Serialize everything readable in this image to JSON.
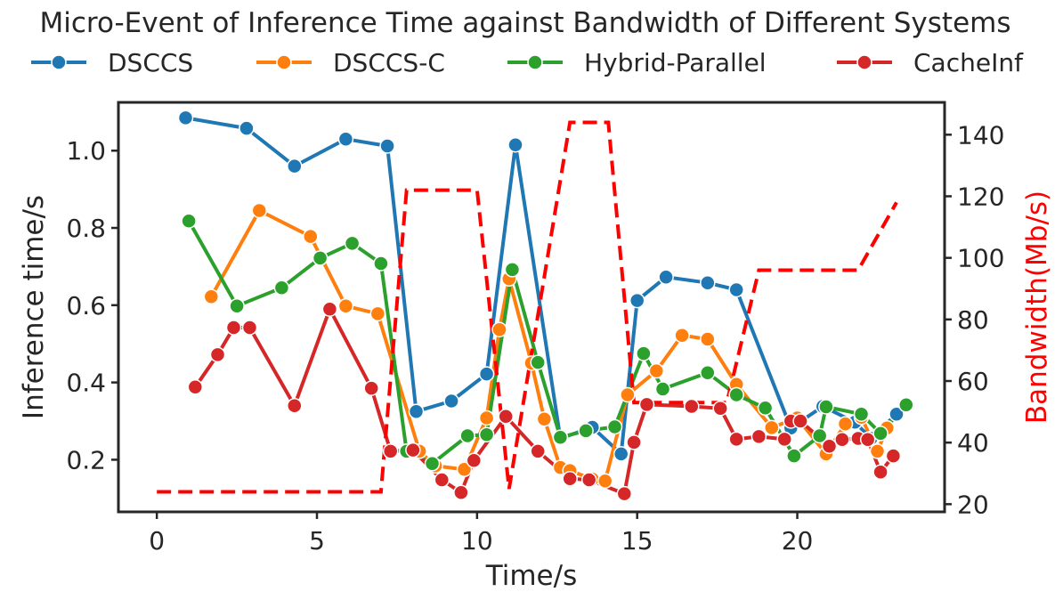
{
  "chart_data": {
    "type": "line",
    "title": "Micro-Event of Inference Time against Bandwidth of Different Systems",
    "xlabel": "Time/s",
    "ylabel": "Inference time/s",
    "y2label": "Bandwidth(Mb/s)",
    "xlim": [
      -1.2,
      24.6
    ],
    "ylim": [
      0.065,
      1.125
    ],
    "y2lim": [
      17.5,
      150.5
    ],
    "xticks": [
      0,
      5,
      10,
      15,
      20
    ],
    "yticks": [
      0.2,
      0.4,
      0.6,
      0.8,
      1.0
    ],
    "y2ticks": [
      20,
      40,
      60,
      80,
      100,
      120,
      140
    ],
    "legend_position": "top",
    "grid": false,
    "series": [
      {
        "name": "DSCCS",
        "color": "#1f77b4",
        "x": [
          0.9,
          2.8,
          4.3,
          5.9,
          7.2,
          8.1,
          9.2,
          10.3,
          11.2,
          12.6,
          13.6,
          14.5,
          15.0,
          15.9,
          17.2,
          18.1,
          19.8,
          20.8,
          21.8,
          22.3,
          23.1
        ],
        "y": [
          1.085,
          1.058,
          0.96,
          1.03,
          1.012,
          0.325,
          0.352,
          0.422,
          1.015,
          0.255,
          0.284,
          0.215,
          0.612,
          0.673,
          0.658,
          0.64,
          0.282,
          0.338,
          0.297,
          0.255,
          0.318
        ]
      },
      {
        "name": "DSCCS-C",
        "color": "#ff7f0e",
        "x": [
          1.7,
          3.2,
          4.8,
          5.9,
          6.9,
          8.2,
          8.7,
          9.6,
          10.3,
          10.7,
          11.0,
          11.7,
          12.1,
          12.6,
          12.9,
          13.6,
          14.0,
          14.7,
          15.6,
          16.4,
          17.2,
          18.1,
          19.2,
          20.0,
          20.9,
          21.5,
          22.0,
          22.5,
          22.8
        ],
        "y": [
          0.622,
          0.845,
          0.778,
          0.598,
          0.578,
          0.222,
          0.184,
          0.175,
          0.308,
          0.537,
          0.668,
          0.45,
          0.305,
          0.18,
          0.172,
          0.15,
          0.145,
          0.368,
          0.43,
          0.522,
          0.512,
          0.395,
          0.283,
          0.308,
          0.215,
          0.293,
          0.31,
          0.222,
          0.282
        ]
      },
      {
        "name": "Hybrid-Parallel",
        "color": "#2ca02c",
        "x": [
          1.0,
          2.5,
          3.9,
          5.1,
          6.1,
          7.0,
          7.8,
          8.6,
          9.7,
          10.3,
          11.1,
          11.9,
          12.6,
          13.4,
          14.3,
          15.2,
          15.8,
          17.2,
          18.1,
          19.0,
          19.9,
          20.7,
          20.9,
          22.0,
          22.6,
          23.4
        ],
        "y": [
          0.818,
          0.598,
          0.645,
          0.722,
          0.76,
          0.708,
          0.222,
          0.19,
          0.262,
          0.265,
          0.692,
          0.452,
          0.258,
          0.275,
          0.285,
          0.475,
          0.383,
          0.425,
          0.368,
          0.334,
          0.21,
          0.262,
          0.337,
          0.318,
          0.268,
          0.342
        ]
      },
      {
        "name": "CacheInf",
        "color": "#d62728",
        "x": [
          1.2,
          1.9,
          2.4,
          2.9,
          4.3,
          5.4,
          6.7,
          7.3,
          8.0,
          8.9,
          9.5,
          9.9,
          10.9,
          11.9,
          12.9,
          13.5,
          14.6,
          14.9,
          15.3,
          16.7,
          17.6,
          18.1,
          18.8,
          19.6,
          19.8,
          20.1,
          21.0,
          21.4,
          21.9,
          22.2,
          22.6,
          23.0
        ],
        "y": [
          0.388,
          0.472,
          0.542,
          0.542,
          0.34,
          0.59,
          0.385,
          0.222,
          0.225,
          0.148,
          0.115,
          0.198,
          0.312,
          0.222,
          0.151,
          0.148,
          0.112,
          0.245,
          0.343,
          0.338,
          0.333,
          0.253,
          0.26,
          0.253,
          0.3,
          0.3,
          0.235,
          0.252,
          0.255,
          0.252,
          0.168,
          0.21
        ]
      }
    ],
    "bandwidth": {
      "color": "#ff0000",
      "style": "dashed",
      "x": [
        0,
        7.0,
        7.8,
        10.0,
        11.0,
        12.9,
        14.1,
        14.9,
        17.8,
        18.8,
        21.9,
        23.1
      ],
      "y": [
        24,
        24,
        122,
        122,
        25,
        144,
        144,
        53,
        53,
        96,
        96,
        118
      ]
    }
  }
}
